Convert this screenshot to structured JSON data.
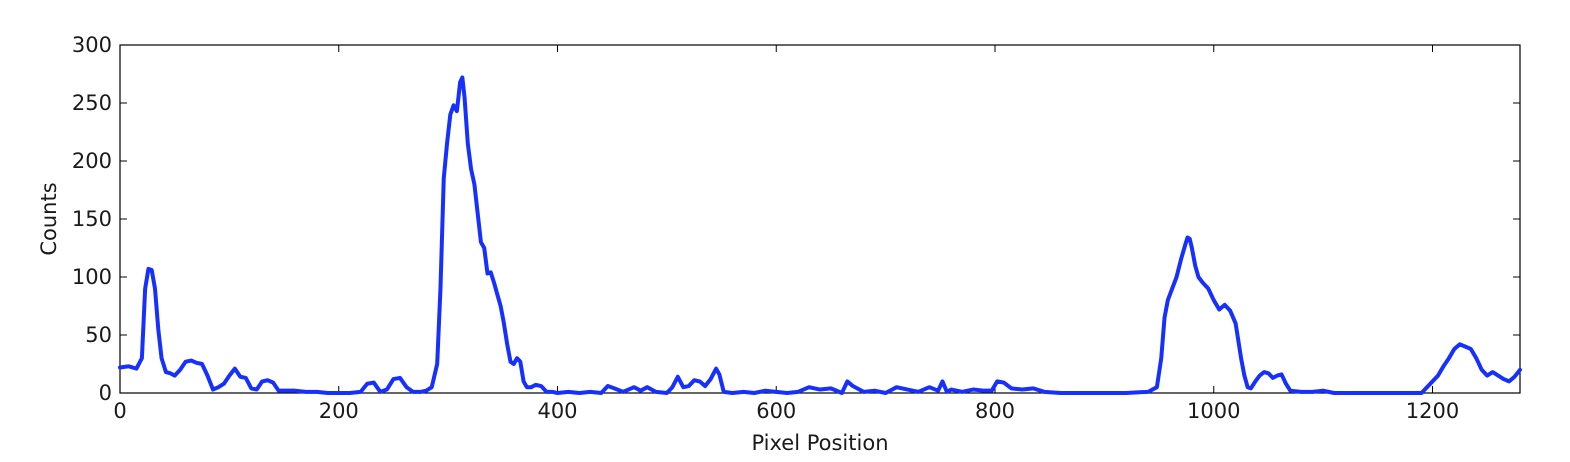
{
  "chart_data": {
    "type": "line",
    "title": "",
    "xlabel": "Pixel Position",
    "ylabel": "Counts",
    "xlim": [
      0,
      1280
    ],
    "ylim": [
      0,
      300
    ],
    "grid": false,
    "legend": "none",
    "x_ticks": [
      0,
      200,
      400,
      600,
      800,
      1000,
      1200
    ],
    "y_ticks": [
      0,
      50,
      100,
      150,
      200,
      250,
      300
    ],
    "x_tick_labels": [
      "0",
      "200",
      "400",
      "600",
      "800",
      "1000",
      "1200"
    ],
    "y_tick_labels": [
      "0",
      "50",
      "100",
      "150",
      "200",
      "250",
      "300"
    ],
    "series": [
      {
        "color": "#1530ff",
        "x": [
          0,
          8,
          15,
          20,
          23,
          26,
          29,
          32,
          35,
          38,
          42,
          46,
          50,
          55,
          60,
          65,
          70,
          75,
          80,
          85,
          90,
          95,
          100,
          105,
          110,
          115,
          120,
          125,
          130,
          135,
          140,
          145,
          150,
          160,
          170,
          180,
          190,
          200,
          210,
          220,
          226,
          232,
          238,
          244,
          250,
          256,
          262,
          268,
          275,
          280,
          285,
          290,
          293,
          296,
          299,
          302,
          305,
          308,
          311,
          313,
          315,
          318,
          321,
          324,
          327,
          330,
          333,
          336,
          339,
          342,
          345,
          348,
          351,
          354,
          357,
          360,
          363,
          366,
          369,
          372,
          376,
          380,
          385,
          390,
          395,
          400,
          410,
          420,
          430,
          440,
          446,
          452,
          460,
          470,
          476,
          482,
          490,
          500,
          505,
          510,
          515,
          520,
          525,
          530,
          535,
          540,
          545,
          548,
          552,
          560,
          570,
          580,
          590,
          600,
          610,
          620,
          630,
          640,
          650,
          660,
          665,
          670,
          680,
          690,
          700,
          710,
          720,
          730,
          740,
          748,
          752,
          756,
          760,
          770,
          780,
          790,
          797,
          802,
          808,
          815,
          825,
          835,
          845,
          860,
          880,
          900,
          920,
          940,
          948,
          952,
          955,
          958,
          962,
          966,
          970,
          974,
          976,
          978,
          980,
          983,
          986,
          990,
          995,
          1000,
          1005,
          1010,
          1015,
          1020,
          1025,
          1028,
          1031,
          1034,
          1038,
          1042,
          1046,
          1050,
          1054,
          1058,
          1062,
          1066,
          1070,
          1080,
          1090,
          1100,
          1110,
          1130,
          1150,
          1170,
          1190,
          1200,
          1205,
          1210,
          1215,
          1220,
          1225,
          1230,
          1235,
          1240,
          1245,
          1250,
          1255,
          1260,
          1265,
          1270,
          1275,
          1280
        ],
        "values": [
          22,
          23,
          21,
          30,
          90,
          107,
          106,
          90,
          55,
          30,
          18,
          17,
          15,
          20,
          27,
          28,
          26,
          25,
          15,
          3,
          5,
          8,
          15,
          21,
          14,
          13,
          4,
          3,
          10,
          11,
          9,
          2,
          2,
          2,
          1,
          1,
          0,
          0,
          0,
          1,
          8,
          9,
          1,
          3,
          12,
          13,
          5,
          1,
          1,
          2,
          5,
          25,
          90,
          185,
          215,
          240,
          248,
          243,
          268,
          272,
          255,
          215,
          193,
          180,
          155,
          130,
          125,
          103,
          104,
          95,
          85,
          75,
          60,
          42,
          27,
          25,
          30,
          27,
          10,
          5,
          5,
          7,
          6,
          1,
          1,
          0,
          1,
          0,
          1,
          0,
          6,
          4,
          1,
          5,
          2,
          5,
          1,
          0,
          5,
          14,
          5,
          6,
          11,
          10,
          6,
          12,
          21,
          16,
          1,
          0,
          1,
          0,
          2,
          1,
          0,
          1,
          5,
          3,
          4,
          0,
          10,
          6,
          1,
          2,
          0,
          5,
          3,
          1,
          5,
          2,
          10,
          1,
          3,
          1,
          3,
          2,
          2,
          10,
          9,
          4,
          3,
          4,
          1,
          0,
          0,
          0,
          0,
          1,
          5,
          30,
          65,
          80,
          90,
          100,
          115,
          128,
          134,
          133,
          125,
          110,
          100,
          95,
          90,
          80,
          72,
          76,
          71,
          60,
          30,
          15,
          5,
          4,
          10,
          15,
          18,
          17,
          13,
          15,
          16,
          8,
          2,
          1,
          1,
          2,
          0,
          0,
          0,
          0,
          0,
          10,
          15,
          23,
          30,
          38,
          42,
          40,
          38,
          30,
          20,
          15,
          18,
          15,
          12,
          10,
          14,
          20
        ]
      }
    ]
  }
}
